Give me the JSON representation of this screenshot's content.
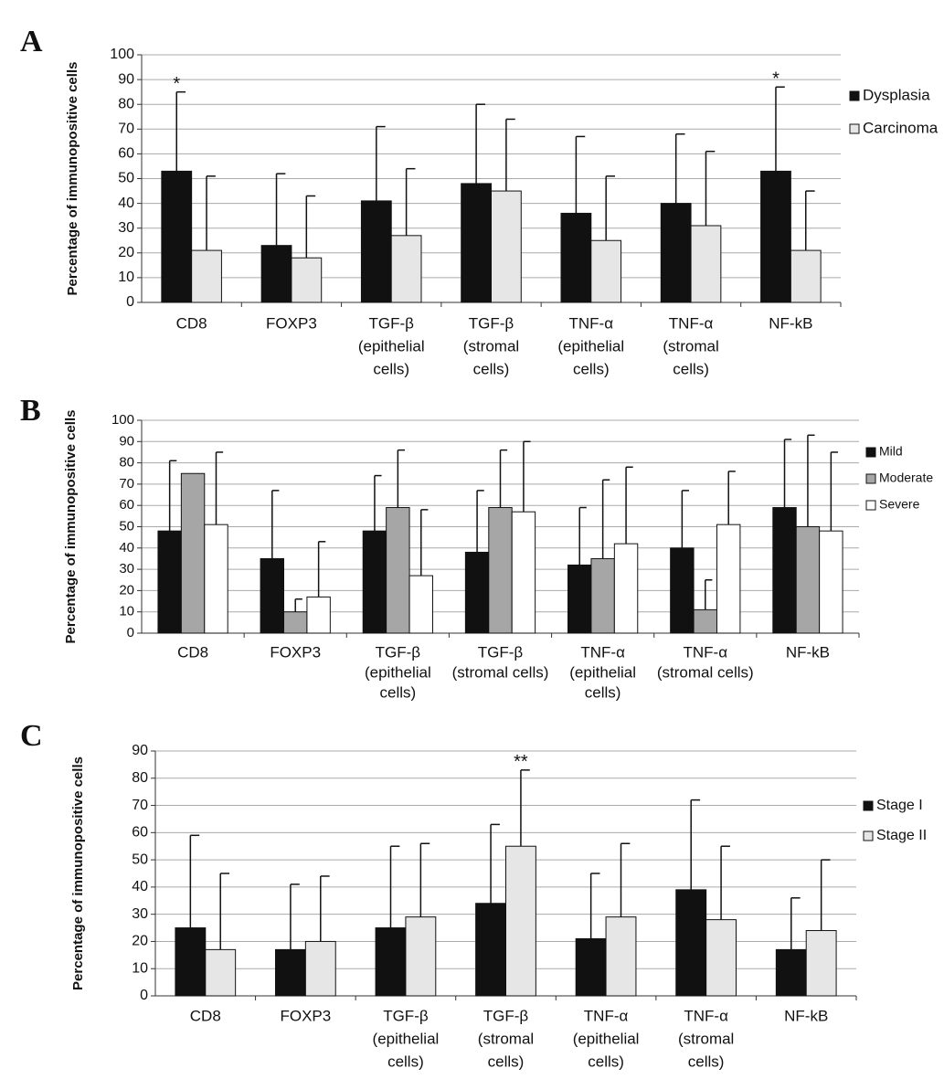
{
  "chart_data": [
    {
      "type": "bar",
      "panel_label": "A",
      "y_label": "Percentage of immunopositive cells",
      "categories": [
        [
          "CD8"
        ],
        [
          "FOXP3"
        ],
        [
          "TGF-β",
          "(epithelial",
          "cells)"
        ],
        [
          "TGF-β",
          "(stromal",
          "cells)"
        ],
        [
          "TNF-α",
          "(epithelial",
          "cells)"
        ],
        [
          "TNF-α",
          "(stromal",
          "cells)"
        ],
        [
          "NF-kB"
        ]
      ],
      "series": [
        {
          "name": "Dysplasia",
          "color": "#111111",
          "values": [
            53,
            23,
            41,
            48,
            36,
            40,
            53
          ],
          "errors": [
            32,
            29,
            30,
            32,
            31,
            28,
            34
          ]
        },
        {
          "name": "Carcinoma",
          "color": "#e6e6e6",
          "values": [
            21,
            18,
            27,
            45,
            25,
            31,
            21
          ],
          "errors": [
            30,
            25,
            27,
            29,
            26,
            30,
            24
          ]
        }
      ],
      "annotations": [
        {
          "text": "*",
          "category": "CD8",
          "series": "Dysplasia"
        },
        {
          "text": "*",
          "category": "NF-kB",
          "series": "Dysplasia"
        }
      ],
      "ylim": [
        0,
        100
      ],
      "yticks": [
        0,
        10,
        20,
        30,
        40,
        50,
        60,
        70,
        80,
        90,
        100
      ],
      "grid": true,
      "legend": "right"
    },
    {
      "type": "bar",
      "panel_label": "B",
      "y_label": "Percentage of immunopositive cells",
      "categories": [
        [
          "CD8"
        ],
        [
          "FOXP3"
        ],
        [
          "TGF-β",
          "(epithelial",
          "cells)"
        ],
        [
          "TGF-β",
          "(stromal cells)"
        ],
        [
          "TNF-α",
          "(epithelial",
          "cells)"
        ],
        [
          "TNF-α",
          "(stromal cells)"
        ],
        [
          "NF-kB"
        ]
      ],
      "series": [
        {
          "name": "Mild",
          "color": "#111111",
          "values": [
            48,
            35,
            48,
            38,
            32,
            40,
            59
          ],
          "errors": [
            33,
            32,
            26,
            29,
            27,
            27,
            32
          ]
        },
        {
          "name": "Moderate",
          "color": "#a6a6a6",
          "values": [
            75,
            10,
            59,
            59,
            35,
            11,
            50
          ],
          "errors": [
            null,
            6,
            27,
            27,
            37,
            14,
            43
          ]
        },
        {
          "name": "Severe",
          "color": "#ffffff",
          "values": [
            51,
            17,
            27,
            57,
            42,
            51,
            48
          ],
          "errors": [
            34,
            26,
            31,
            33,
            36,
            25,
            37
          ]
        }
      ],
      "annotations": [],
      "ylim": [
        0,
        100
      ],
      "yticks": [
        0,
        10,
        20,
        30,
        40,
        50,
        60,
        70,
        80,
        90,
        100
      ],
      "grid": true,
      "legend": "right"
    },
    {
      "type": "bar",
      "panel_label": "C",
      "y_label": "Percentage of immunopositive cells",
      "categories": [
        [
          "CD8"
        ],
        [
          "FOXP3"
        ],
        [
          "TGF-β",
          "(epithelial",
          "cells)"
        ],
        [
          "TGF-β",
          "(stromal",
          "cells)"
        ],
        [
          "TNF-α",
          "(epithelial",
          "cells)"
        ],
        [
          "TNF-α",
          "(stromal",
          "cells)"
        ],
        [
          "NF-kB"
        ]
      ],
      "series": [
        {
          "name": "Stage I",
          "color": "#111111",
          "values": [
            25,
            17,
            25,
            34,
            21,
            39,
            17
          ],
          "errors": [
            34,
            24,
            30,
            29,
            24,
            33,
            19
          ]
        },
        {
          "name": "Stage II",
          "color": "#e6e6e6",
          "values": [
            17,
            20,
            29,
            55,
            29,
            28,
            24
          ],
          "errors": [
            28,
            24,
            27,
            28,
            27,
            27,
            26
          ]
        }
      ],
      "annotations": [
        {
          "text": "**",
          "category": "TGF-β (stromal cells)",
          "series": "Stage II"
        }
      ],
      "ylim": [
        0,
        90
      ],
      "yticks": [
        0,
        10,
        20,
        30,
        40,
        50,
        60,
        70,
        80,
        90
      ],
      "grid": true,
      "legend": "right"
    }
  ]
}
